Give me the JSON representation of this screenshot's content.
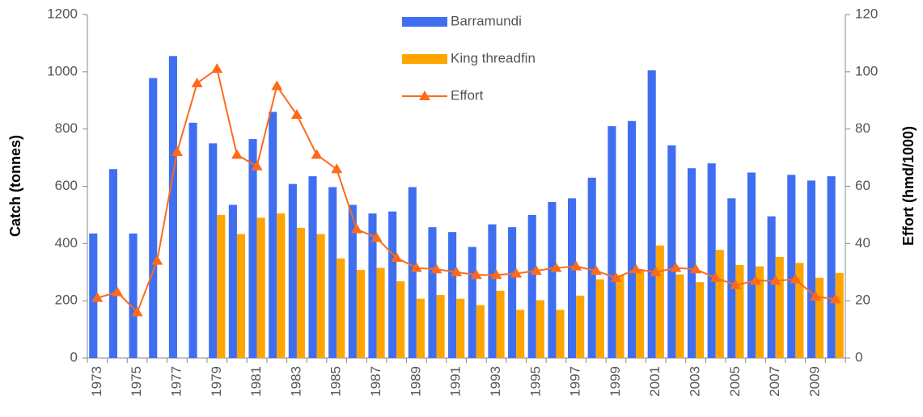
{
  "chart_data": {
    "type": "bar_line",
    "y_label": "Catch (tonnes)",
    "y2_label": "Effort (hmd/1000)",
    "categories": [
      "1973",
      null,
      "1975",
      null,
      "1977",
      null,
      "1979",
      null,
      "1981",
      null,
      "1983",
      null,
      "1985",
      null,
      "1987",
      null,
      "1989",
      null,
      "1991",
      null,
      "1993",
      null,
      "1995",
      null,
      "1997",
      null,
      "1999",
      null,
      "2001",
      null,
      "2003",
      null,
      "2005",
      null,
      "2007",
      null,
      "2009",
      null
    ],
    "series": [
      {
        "name": "Barramundi",
        "color": "#3f6ff0",
        "kind": "bar",
        "values": [
          435,
          660,
          435,
          978,
          1055,
          822,
          750,
          535,
          765,
          860,
          608,
          635,
          597,
          535,
          505,
          512,
          597,
          457,
          440,
          388,
          467,
          457,
          500,
          545,
          558,
          630,
          810,
          828,
          1005,
          743,
          663,
          680,
          558,
          648,
          495,
          640,
          620,
          635
        ]
      },
      {
        "name": "King threadfin",
        "color": "#ffa500",
        "kind": "bar",
        "values": [
          null,
          null,
          null,
          null,
          null,
          null,
          500,
          433,
          490,
          505,
          455,
          433,
          348,
          308,
          315,
          268,
          207,
          220,
          207,
          185,
          235,
          168,
          202,
          168,
          218,
          275,
          290,
          305,
          393,
          292,
          265,
          378,
          325,
          320,
          353,
          332,
          280,
          297
        ]
      },
      {
        "name": "Effort",
        "color": "#ff6a1a",
        "kind": "line",
        "axis": "y2",
        "values": [
          21,
          23,
          16,
          34,
          72,
          96,
          101,
          71,
          67,
          95,
          85,
          71,
          66,
          45,
          42,
          35,
          31.5,
          31,
          30,
          29,
          29,
          29.5,
          30.5,
          31.5,
          32,
          30.5,
          28,
          31,
          30,
          31.5,
          31,
          28,
          25.5,
          27,
          27,
          27.5,
          21.5,
          20.5
        ]
      }
    ],
    "ylim": [
      0,
      1200
    ],
    "yticks": [
      0,
      200,
      400,
      600,
      800,
      1000,
      1200
    ],
    "y2lim": [
      0,
      120
    ],
    "y2ticks": [
      0,
      20,
      40,
      60,
      80,
      100,
      120
    ]
  }
}
